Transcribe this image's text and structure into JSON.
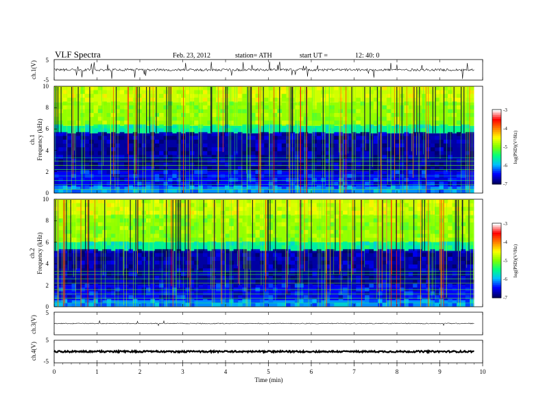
{
  "header": {
    "title": "VLF Spectra",
    "date": "Feb. 23, 2012",
    "station": "station= ATH",
    "start": "start UT =",
    "start_time": "12: 40: 0"
  },
  "chart_data": [
    {
      "type": "line",
      "name": "ch1-waveform",
      "ylabel": "ch.1(V)",
      "ylim": [
        -5,
        5
      ],
      "yticks": [
        "5",
        "-5"
      ],
      "baseline": 0
    },
    {
      "type": "heatmap",
      "name": "ch1-spectrogram",
      "ylabel_top": "ch.1",
      "ylabel": "Frequency (kHz)",
      "ylim": [
        0,
        10
      ],
      "yticks": [
        "0",
        "2",
        "4",
        "6",
        "8",
        "10"
      ],
      "colorbar": {
        "label": "log(PSD)(V²/Hz)",
        "range": [
          -7,
          -3
        ],
        "ticks": [
          "-3",
          "-4",
          "-5",
          "-6",
          "-7"
        ],
        "colors": [
          "#000066",
          "#0000ff",
          "#00bfff",
          "#00ff80",
          "#80ff00",
          "#ffff00",
          "#ff8000",
          "#ff0000",
          "#ffffff"
        ]
      },
      "structure": {
        "dark_below_kHz": 5.6,
        "bright_above_kHz": 6.3,
        "hiss_top_kHz": 10
      }
    },
    {
      "type": "heatmap",
      "name": "ch2-spectrogram",
      "ylabel_top": "ch.2",
      "ylabel": "Frequency (kHz)",
      "ylim": [
        0,
        10
      ],
      "yticks": [
        "0",
        "2",
        "4",
        "6",
        "8",
        "10"
      ],
      "colorbar": {
        "label": "log(PSD)(V²/Hz)",
        "range": [
          -7,
          -3
        ],
        "ticks": [
          "-3",
          "-4",
          "-5",
          "-6",
          "-7"
        ]
      },
      "structure": {
        "dark_below_kHz": 5.2,
        "bright_above_kHz": 6.0,
        "hiss_top_kHz": 10
      }
    },
    {
      "type": "line",
      "name": "ch3-waveform",
      "ylabel": "ch.3(V)",
      "ylim": [
        -5,
        5
      ],
      "yticks": [
        "5"
      ],
      "baseline": 0
    },
    {
      "type": "line",
      "name": "ch4-waveform",
      "ylabel": "ch.4(V)",
      "ylim": [
        -5,
        5
      ],
      "yticks": [
        "5",
        "-5"
      ],
      "baseline": 0
    }
  ],
  "x_axis": {
    "label": "Time (min)",
    "range": [
      0,
      10
    ],
    "data_end": 9.8,
    "ticks": [
      "0",
      "1",
      "2",
      "3",
      "4",
      "5",
      "6",
      "7",
      "8",
      "9",
      "10"
    ]
  }
}
